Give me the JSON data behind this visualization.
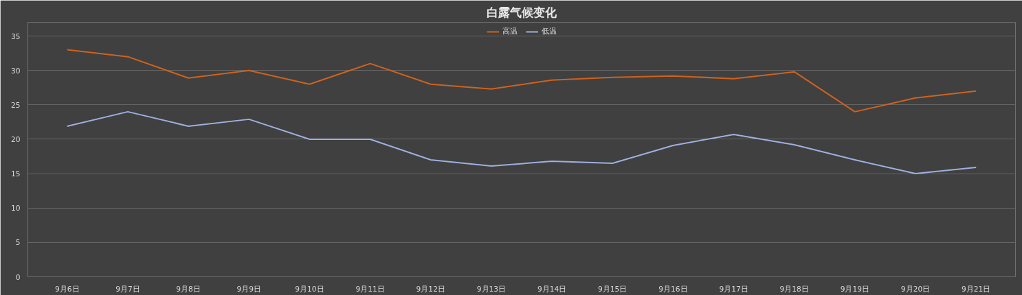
{
  "chart_data": {
    "type": "line",
    "title": "白露气候变化",
    "categories": [
      "9月6日",
      "9月7日",
      "9月8日",
      "9月9日",
      "9月10日",
      "9月11日",
      "9月12日",
      "9月13日",
      "9月14日",
      "9月15日",
      "9月16日",
      "9月17日",
      "9月18日",
      "9月19日",
      "9月20日",
      "9月21日"
    ],
    "series": [
      {
        "name": "高温",
        "color": "#d0621c",
        "values": [
          33,
          32,
          28.9,
          30,
          28,
          31,
          28,
          27.3,
          28.6,
          29,
          29.2,
          28.8,
          29.8,
          24,
          26,
          27
        ]
      },
      {
        "name": "低温",
        "color": "#9fb0e0",
        "values": [
          21.9,
          24,
          21.9,
          22.9,
          20,
          20,
          17,
          16.1,
          16.8,
          16.5,
          19.1,
          20.7,
          19.2,
          17,
          15,
          15.9
        ]
      }
    ],
    "ylim": [
      0,
      37
    ],
    "yticks": [
      0,
      5,
      10,
      15,
      20,
      25,
      30,
      35
    ],
    "grid": "y",
    "legend": "top",
    "marker": "none",
    "line_style": "solid"
  }
}
